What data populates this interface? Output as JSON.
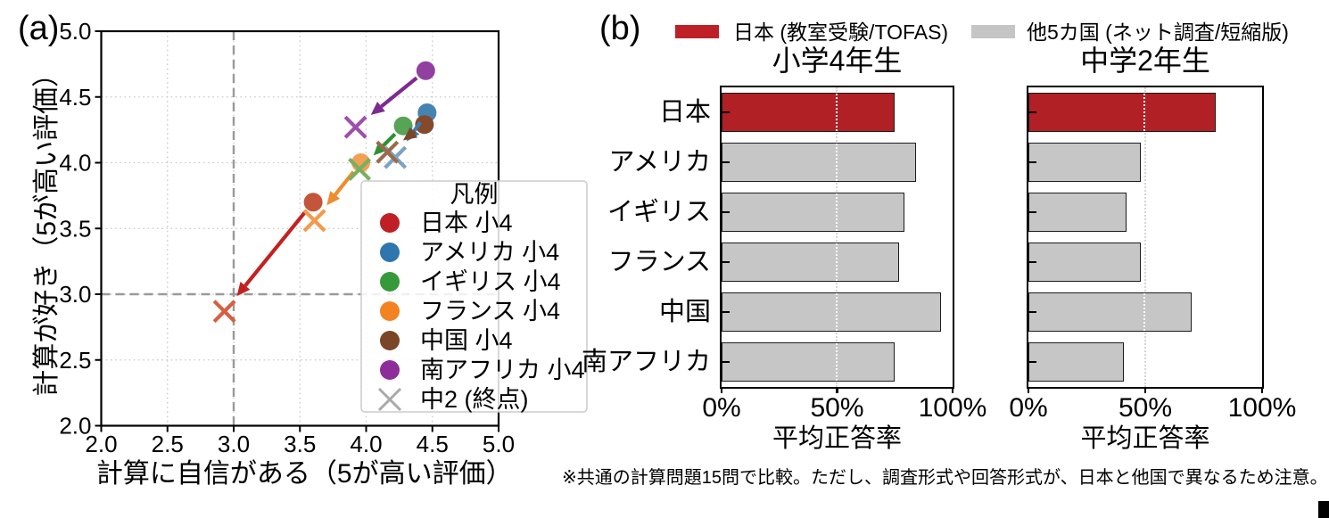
{
  "panel_a": {
    "label": "(a)"
  },
  "panel_b": {
    "label": "(b)",
    "legend": [
      {
        "label": "日本 (教室受験/TOFAS)",
        "color": "#bf2026"
      },
      {
        "label": "他5カ国 (ネット調査/短縮版)",
        "color": "#c5c5c5"
      }
    ],
    "footnote": "※共通の計算問題15問で比較。ただし、調査形式や回答形式が、日本と他国で異なるため注意。"
  },
  "colors": {
    "japan_red": "#bf2026",
    "japan_bar_red": "#b02025",
    "other_gray": "#c6c6c6",
    "bar_edge": "#1c1c1c",
    "grid": "#c8c8c8",
    "ref_dash": "#9a9a9a",
    "spine": "#000000",
    "legend_border": "#cccccc",
    "end_marker_gray": "#a9a9a9",
    "white_grid": "#ffffff",
    "corner_mark": "#000000"
  },
  "chart_data": [
    {
      "id": "scatter-confidence-vs-liking",
      "type": "scatter",
      "xlabel": "計算に自信がある（5が高い評価）",
      "ylabel": "計算が好き（5が高い評価）",
      "xlim": [
        2.0,
        5.0
      ],
      "ylim": [
        2.0,
        5.0
      ],
      "x_ticks": [
        2.0,
        2.5,
        3.0,
        3.5,
        4.0,
        4.5,
        5.0
      ],
      "y_ticks": [
        2.0,
        2.5,
        3.0,
        3.5,
        4.0,
        4.5,
        5.0
      ],
      "grid": "dotted",
      "reference_lines": {
        "x": 3.0,
        "y": 3.0,
        "style": "dashed"
      },
      "legend_title": "凡例",
      "end_marker_label": "中2 (終点)",
      "series": [
        {
          "name": "日本 小4",
          "legend_color": "#bf2026",
          "point_color": "#c4553a",
          "x_color": "#d65f41",
          "arrow_color": "#c32121",
          "grade4": [
            3.6,
            3.7
          ],
          "grade8_end": [
            2.93,
            2.87
          ]
        },
        {
          "name": "アメリカ 小4",
          "legend_color": "#2e76ae",
          "point_color": "#4583b3",
          "x_color": "#7ba3c4",
          "arrow_color": "#3c7cb0",
          "grade4": [
            4.46,
            4.38
          ],
          "grade8_end": [
            4.22,
            4.04
          ]
        },
        {
          "name": "イギリス 小4",
          "legend_color": "#36993a",
          "point_color": "#57a457",
          "x_color": "#79af5f",
          "arrow_color": "#2f9133",
          "grade4": [
            4.28,
            4.28
          ],
          "grade8_end": [
            3.95,
            3.95
          ]
        },
        {
          "name": "フランス 小4",
          "legend_color": "#f38220",
          "point_color": "#f2a055",
          "x_color": "#f29a4b",
          "arrow_color": "#ef8c2d",
          "grade4": [
            3.96,
            4.0
          ],
          "grade8_end": [
            3.61,
            3.56
          ]
        },
        {
          "name": "中国 小4",
          "legend_color": "#7b4627",
          "point_color": "#85492b",
          "x_color": "#9a6b4a",
          "arrow_color": "#7b4627",
          "grade4": [
            4.44,
            4.29
          ],
          "grade8_end": [
            4.16,
            4.08
          ]
        },
        {
          "name": "南アフリカ 小4",
          "legend_color": "#8d2d9a",
          "point_color": "#9140a0",
          "x_color": "#9d4fab",
          "arrow_color": "#7d2b90",
          "grade4": [
            4.45,
            4.7
          ],
          "grade8_end": [
            3.92,
            4.27
          ]
        }
      ]
    },
    {
      "id": "bars-grade4",
      "type": "bar",
      "title": "小学4年生",
      "xlabel": "平均正答率",
      "categories": [
        "日本",
        "アメリカ",
        "イギリス",
        "フランス",
        "中国",
        "南アフリカ"
      ],
      "values": [
        75,
        84,
        79,
        77,
        95,
        75
      ],
      "xlim": [
        0,
        100
      ],
      "x_ticks": [
        "0%",
        "50%",
        "100%"
      ],
      "highlight_index": 0
    },
    {
      "id": "bars-grade8",
      "type": "bar",
      "title": "中学2年生",
      "xlabel": "平均正答率",
      "categories": [
        "日本",
        "アメリカ",
        "イギリス",
        "フランス",
        "中国",
        "南アフリカ"
      ],
      "values": [
        80,
        48,
        42,
        48,
        70,
        41
      ],
      "xlim": [
        0,
        100
      ],
      "x_ticks": [
        "0%",
        "50%",
        "100%"
      ],
      "highlight_index": 0
    }
  ]
}
